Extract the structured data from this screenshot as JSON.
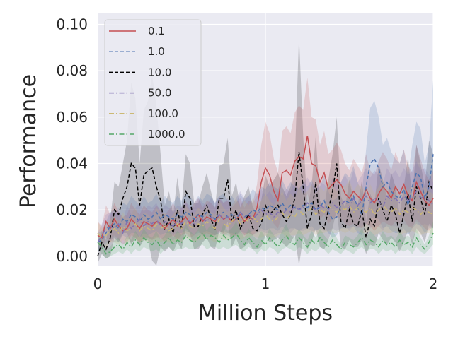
{
  "chart_data": {
    "type": "line",
    "xlabel": "Million Steps",
    "ylabel": "Performance",
    "xlim": [
      0,
      2
    ],
    "ylim": [
      -0.004,
      0.105
    ],
    "xticks": [
      0,
      1,
      2
    ],
    "xtick_labels": [
      "0",
      "1",
      "2"
    ],
    "yticks": [
      0.0,
      0.02,
      0.04,
      0.06,
      0.08,
      0.1
    ],
    "ytick_labels": [
      "0.00",
      "0.02",
      "0.04",
      "0.06",
      "0.08",
      "0.10"
    ],
    "grid": true,
    "legend_position": "upper-left",
    "x": [
      0.0,
      0.025,
      0.05,
      0.075,
      0.1,
      0.125,
      0.15,
      0.175,
      0.2,
      0.225,
      0.25,
      0.275,
      0.3,
      0.325,
      0.35,
      0.375,
      0.4,
      0.425,
      0.45,
      0.475,
      0.5,
      0.525,
      0.55,
      0.575,
      0.6,
      0.625,
      0.65,
      0.675,
      0.7,
      0.725,
      0.75,
      0.775,
      0.8,
      0.825,
      0.85,
      0.875,
      0.9,
      0.925,
      0.95,
      0.975,
      1.0,
      1.025,
      1.05,
      1.075,
      1.1,
      1.125,
      1.15,
      1.175,
      1.2,
      1.225,
      1.25,
      1.275,
      1.3,
      1.325,
      1.35,
      1.375,
      1.4,
      1.425,
      1.45,
      1.475,
      1.5,
      1.525,
      1.55,
      1.575,
      1.6,
      1.625,
      1.65,
      1.675,
      1.7,
      1.725,
      1.75,
      1.775,
      1.8,
      1.825,
      1.85,
      1.875,
      1.9,
      1.925,
      1.95,
      1.975,
      2.0
    ],
    "series": [
      {
        "name": "0.1",
        "color": "#c44e52",
        "dash": "solid",
        "values": [
          0.009,
          0.008,
          0.015,
          0.012,
          0.016,
          0.013,
          0.011,
          0.012,
          0.016,
          0.014,
          0.012,
          0.015,
          0.014,
          0.013,
          0.015,
          0.014,
          0.012,
          0.014,
          0.016,
          0.013,
          0.015,
          0.017,
          0.014,
          0.016,
          0.018,
          0.015,
          0.017,
          0.016,
          0.015,
          0.018,
          0.016,
          0.017,
          0.015,
          0.016,
          0.018,
          0.015,
          0.017,
          0.016,
          0.021,
          0.032,
          0.038,
          0.035,
          0.028,
          0.024,
          0.036,
          0.037,
          0.035,
          0.041,
          0.043,
          0.042,
          0.052,
          0.04,
          0.039,
          0.032,
          0.036,
          0.029,
          0.031,
          0.033,
          0.031,
          0.027,
          0.025,
          0.028,
          0.026,
          0.024,
          0.029,
          0.025,
          0.023,
          0.027,
          0.03,
          0.028,
          0.025,
          0.03,
          0.027,
          0.031,
          0.026,
          0.024,
          0.032,
          0.028,
          0.024,
          0.022,
          0.025
        ],
        "band": [
          0.006,
          0.005,
          0.007,
          0.006,
          0.007,
          0.006,
          0.006,
          0.006,
          0.007,
          0.006,
          0.006,
          0.007,
          0.006,
          0.006,
          0.007,
          0.006,
          0.006,
          0.006,
          0.007,
          0.006,
          0.006,
          0.007,
          0.006,
          0.007,
          0.007,
          0.006,
          0.007,
          0.007,
          0.006,
          0.007,
          0.007,
          0.007,
          0.006,
          0.007,
          0.007,
          0.006,
          0.007,
          0.007,
          0.01,
          0.016,
          0.02,
          0.018,
          0.014,
          0.012,
          0.018,
          0.019,
          0.018,
          0.021,
          0.022,
          0.021,
          0.025,
          0.02,
          0.02,
          0.016,
          0.018,
          0.015,
          0.015,
          0.016,
          0.015,
          0.013,
          0.012,
          0.014,
          0.013,
          0.012,
          0.015,
          0.012,
          0.012,
          0.014,
          0.015,
          0.014,
          0.012,
          0.015,
          0.013,
          0.015,
          0.013,
          0.012,
          0.016,
          0.014,
          0.012,
          0.011,
          0.012
        ]
      },
      {
        "name": "1.0",
        "color": "#4c72b0",
        "dash": "dashed",
        "values": [
          0.006,
          0.007,
          0.01,
          0.013,
          0.014,
          0.012,
          0.016,
          0.015,
          0.018,
          0.017,
          0.015,
          0.018,
          0.016,
          0.017,
          0.019,
          0.016,
          0.018,
          0.017,
          0.016,
          0.018,
          0.017,
          0.019,
          0.018,
          0.016,
          0.018,
          0.017,
          0.019,
          0.018,
          0.016,
          0.018,
          0.019,
          0.017,
          0.018,
          0.016,
          0.019,
          0.017,
          0.018,
          0.02,
          0.019,
          0.021,
          0.02,
          0.022,
          0.021,
          0.02,
          0.023,
          0.02,
          0.022,
          0.021,
          0.02,
          0.022,
          0.021,
          0.023,
          0.02,
          0.021,
          0.024,
          0.019,
          0.016,
          0.017,
          0.022,
          0.024,
          0.023,
          0.026,
          0.021,
          0.018,
          0.03,
          0.04,
          0.042,
          0.038,
          0.03,
          0.032,
          0.028,
          0.026,
          0.025,
          0.029,
          0.022,
          0.03,
          0.036,
          0.034,
          0.025,
          0.03,
          0.044
        ],
        "band": [
          0.004,
          0.004,
          0.005,
          0.006,
          0.006,
          0.006,
          0.007,
          0.007,
          0.008,
          0.007,
          0.007,
          0.008,
          0.007,
          0.007,
          0.008,
          0.007,
          0.008,
          0.007,
          0.007,
          0.008,
          0.007,
          0.008,
          0.008,
          0.007,
          0.008,
          0.007,
          0.008,
          0.008,
          0.007,
          0.008,
          0.008,
          0.007,
          0.008,
          0.007,
          0.008,
          0.007,
          0.008,
          0.009,
          0.008,
          0.009,
          0.009,
          0.01,
          0.009,
          0.009,
          0.01,
          0.009,
          0.01,
          0.009,
          0.009,
          0.01,
          0.009,
          0.01,
          0.009,
          0.009,
          0.011,
          0.009,
          0.008,
          0.008,
          0.01,
          0.012,
          0.011,
          0.013,
          0.011,
          0.009,
          0.016,
          0.024,
          0.025,
          0.022,
          0.018,
          0.019,
          0.017,
          0.016,
          0.015,
          0.017,
          0.013,
          0.018,
          0.022,
          0.021,
          0.015,
          0.018,
          0.032
        ]
      },
      {
        "name": "10.0",
        "color": "#000000",
        "dash": "dashed",
        "values": [
          0.0,
          0.006,
          0.003,
          0.008,
          0.02,
          0.018,
          0.025,
          0.03,
          0.04,
          0.038,
          0.022,
          0.035,
          0.037,
          0.038,
          0.03,
          0.024,
          0.012,
          0.016,
          0.01,
          0.02,
          0.012,
          0.028,
          0.025,
          0.013,
          0.013,
          0.018,
          0.022,
          0.016,
          0.012,
          0.025,
          0.025,
          0.033,
          0.015,
          0.02,
          0.012,
          0.015,
          0.018,
          0.012,
          0.011,
          0.014,
          0.022,
          0.018,
          0.02,
          0.022,
          0.018,
          0.015,
          0.018,
          0.025,
          0.045,
          0.03,
          0.012,
          0.018,
          0.032,
          0.014,
          0.012,
          0.02,
          0.028,
          0.04,
          0.015,
          0.012,
          0.02,
          0.014,
          0.013,
          0.02,
          0.008,
          0.016,
          0.013,
          0.025,
          0.02,
          0.015,
          0.022,
          0.018,
          0.01,
          0.018,
          0.027,
          0.015,
          0.03,
          0.025,
          0.018,
          0.032,
          0.028
        ],
        "band": [
          0.003,
          0.005,
          0.004,
          0.008,
          0.012,
          0.012,
          0.015,
          0.02,
          0.035,
          0.03,
          0.018,
          0.028,
          0.03,
          0.04,
          0.035,
          0.02,
          0.01,
          0.012,
          0.008,
          0.014,
          0.009,
          0.016,
          0.015,
          0.01,
          0.01,
          0.012,
          0.014,
          0.012,
          0.009,
          0.014,
          0.015,
          0.018,
          0.011,
          0.012,
          0.009,
          0.011,
          0.012,
          0.009,
          0.008,
          0.01,
          0.013,
          0.012,
          0.013,
          0.014,
          0.012,
          0.011,
          0.012,
          0.016,
          0.05,
          0.022,
          0.009,
          0.012,
          0.02,
          0.01,
          0.009,
          0.013,
          0.016,
          0.02,
          0.011,
          0.009,
          0.013,
          0.01,
          0.009,
          0.013,
          0.007,
          0.011,
          0.009,
          0.015,
          0.013,
          0.01,
          0.014,
          0.012,
          0.008,
          0.012,
          0.016,
          0.01,
          0.018,
          0.015,
          0.012,
          0.018,
          0.016
        ]
      },
      {
        "name": "50.0",
        "color": "#8172b2",
        "dash": "dashdot",
        "values": [
          0.006,
          0.009,
          0.012,
          0.013,
          0.012,
          0.014,
          0.01,
          0.015,
          0.012,
          0.014,
          0.016,
          0.013,
          0.015,
          0.014,
          0.016,
          0.013,
          0.015,
          0.014,
          0.013,
          0.015,
          0.014,
          0.016,
          0.015,
          0.014,
          0.017,
          0.016,
          0.015,
          0.017,
          0.016,
          0.018,
          0.016,
          0.017,
          0.015,
          0.017,
          0.019,
          0.017,
          0.018,
          0.016,
          0.018,
          0.02,
          0.018,
          0.019,
          0.017,
          0.019,
          0.018,
          0.02,
          0.019,
          0.022,
          0.02,
          0.021,
          0.023,
          0.021,
          0.02,
          0.022,
          0.021,
          0.02,
          0.023,
          0.021,
          0.022,
          0.024,
          0.021,
          0.025,
          0.022,
          0.024,
          0.026,
          0.023,
          0.025,
          0.024,
          0.021,
          0.026,
          0.024,
          0.025,
          0.023,
          0.026,
          0.024,
          0.025,
          0.028,
          0.025,
          0.026,
          0.024,
          0.022
        ],
        "band": [
          0.004,
          0.005,
          0.006,
          0.006,
          0.006,
          0.007,
          0.005,
          0.007,
          0.006,
          0.007,
          0.007,
          0.006,
          0.007,
          0.007,
          0.007,
          0.006,
          0.007,
          0.007,
          0.006,
          0.007,
          0.007,
          0.007,
          0.007,
          0.007,
          0.008,
          0.007,
          0.007,
          0.008,
          0.007,
          0.008,
          0.007,
          0.008,
          0.007,
          0.008,
          0.009,
          0.008,
          0.008,
          0.007,
          0.008,
          0.009,
          0.008,
          0.009,
          0.008,
          0.009,
          0.008,
          0.009,
          0.009,
          0.01,
          0.009,
          0.01,
          0.011,
          0.01,
          0.009,
          0.01,
          0.01,
          0.009,
          0.011,
          0.01,
          0.01,
          0.011,
          0.01,
          0.012,
          0.01,
          0.011,
          0.012,
          0.011,
          0.012,
          0.011,
          0.01,
          0.012,
          0.011,
          0.012,
          0.011,
          0.012,
          0.011,
          0.012,
          0.013,
          0.012,
          0.012,
          0.011,
          0.01
        ]
      },
      {
        "name": "100.0",
        "color": "#ccb974",
        "dash": "dashdot",
        "values": [
          0.01,
          0.008,
          0.009,
          0.011,
          0.012,
          0.01,
          0.013,
          0.011,
          0.012,
          0.014,
          0.011,
          0.013,
          0.012,
          0.011,
          0.014,
          0.012,
          0.013,
          0.011,
          0.012,
          0.014,
          0.012,
          0.015,
          0.013,
          0.012,
          0.014,
          0.013,
          0.015,
          0.013,
          0.012,
          0.016,
          0.014,
          0.013,
          0.015,
          0.017,
          0.014,
          0.016,
          0.015,
          0.017,
          0.015,
          0.016,
          0.018,
          0.016,
          0.015,
          0.017,
          0.019,
          0.016,
          0.018,
          0.017,
          0.02,
          0.018,
          0.019,
          0.021,
          0.018,
          0.02,
          0.019,
          0.022,
          0.02,
          0.019,
          0.021,
          0.02,
          0.022,
          0.019,
          0.021,
          0.02,
          0.019,
          0.021,
          0.018,
          0.02,
          0.022,
          0.02,
          0.019,
          0.021,
          0.018,
          0.02,
          0.019,
          0.021,
          0.02,
          0.018,
          0.02,
          0.019,
          0.018
        ],
        "band": [
          0.005,
          0.004,
          0.005,
          0.005,
          0.006,
          0.005,
          0.006,
          0.005,
          0.006,
          0.007,
          0.005,
          0.006,
          0.006,
          0.005,
          0.007,
          0.006,
          0.006,
          0.005,
          0.006,
          0.007,
          0.006,
          0.007,
          0.006,
          0.006,
          0.007,
          0.006,
          0.007,
          0.006,
          0.006,
          0.008,
          0.007,
          0.006,
          0.007,
          0.008,
          0.007,
          0.008,
          0.007,
          0.008,
          0.007,
          0.008,
          0.009,
          0.008,
          0.007,
          0.008,
          0.009,
          0.008,
          0.009,
          0.008,
          0.01,
          0.009,
          0.009,
          0.01,
          0.009,
          0.01,
          0.009,
          0.011,
          0.01,
          0.009,
          0.01,
          0.01,
          0.011,
          0.009,
          0.01,
          0.01,
          0.009,
          0.01,
          0.009,
          0.01,
          0.011,
          0.01,
          0.009,
          0.01,
          0.009,
          0.01,
          0.009,
          0.01,
          0.01,
          0.009,
          0.01,
          0.009,
          0.009
        ]
      },
      {
        "name": "1000.0",
        "color": "#55a868",
        "dash": "dashdot",
        "values": [
          0.006,
          0.004,
          0.001,
          0.002,
          0.004,
          0.005,
          0.003,
          0.006,
          0.004,
          0.007,
          0.005,
          0.008,
          0.006,
          0.005,
          0.007,
          0.004,
          0.006,
          0.008,
          0.005,
          0.007,
          0.006,
          0.009,
          0.007,
          0.006,
          0.008,
          0.01,
          0.007,
          0.009,
          0.008,
          0.006,
          0.009,
          0.007,
          0.008,
          0.01,
          0.007,
          0.005,
          0.008,
          0.006,
          0.004,
          0.007,
          0.005,
          0.008,
          0.006,
          0.004,
          0.007,
          0.009,
          0.006,
          0.005,
          0.008,
          0.006,
          0.004,
          0.007,
          0.005,
          0.008,
          0.006,
          0.004,
          0.007,
          0.005,
          0.003,
          0.006,
          0.005,
          0.004,
          0.006,
          0.008,
          0.005,
          0.007,
          0.006,
          0.004,
          0.007,
          0.005,
          0.006,
          0.004,
          0.007,
          0.005,
          0.006,
          0.004,
          0.008,
          0.005,
          0.003,
          0.006,
          0.01
        ],
        "band": [
          0.003,
          0.003,
          0.002,
          0.002,
          0.003,
          0.003,
          0.002,
          0.003,
          0.003,
          0.004,
          0.003,
          0.004,
          0.003,
          0.003,
          0.004,
          0.003,
          0.003,
          0.004,
          0.003,
          0.004,
          0.003,
          0.005,
          0.004,
          0.003,
          0.004,
          0.005,
          0.004,
          0.005,
          0.004,
          0.003,
          0.005,
          0.004,
          0.004,
          0.005,
          0.004,
          0.003,
          0.004,
          0.003,
          0.003,
          0.004,
          0.003,
          0.004,
          0.003,
          0.003,
          0.004,
          0.005,
          0.003,
          0.003,
          0.004,
          0.003,
          0.003,
          0.004,
          0.003,
          0.004,
          0.003,
          0.003,
          0.004,
          0.003,
          0.002,
          0.003,
          0.003,
          0.003,
          0.003,
          0.004,
          0.003,
          0.004,
          0.003,
          0.003,
          0.004,
          0.003,
          0.003,
          0.003,
          0.004,
          0.003,
          0.003,
          0.003,
          0.004,
          0.003,
          0.002,
          0.003,
          0.005
        ]
      }
    ]
  }
}
